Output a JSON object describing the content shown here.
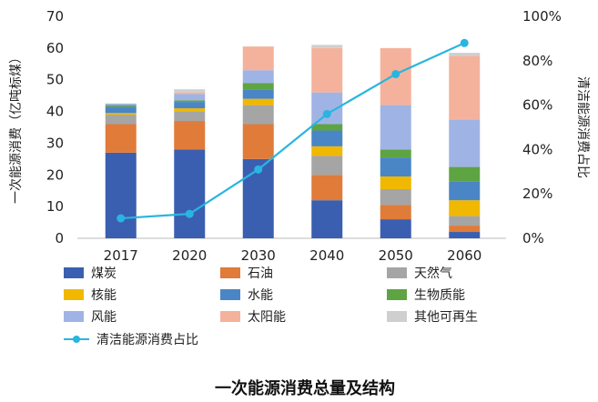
{
  "chart_data": {
    "type": "bar",
    "stacked": true,
    "categories": [
      "2017",
      "2020",
      "2030",
      "2040",
      "2050",
      "2060"
    ],
    "ylabel": "一次能源消费（亿吨标煤）",
    "ylabel_right": "清洁能源消费占比",
    "ylim": [
      0,
      70
    ],
    "yticks": [
      0,
      10,
      20,
      30,
      40,
      50,
      60,
      70
    ],
    "ylim_right": [
      0,
      100
    ],
    "yticks_right": [
      "0%",
      "20%",
      "40%",
      "60%",
      "80%",
      "100%"
    ],
    "series": [
      {
        "name": "煤炭",
        "color": "#3a5fb0",
        "values": [
          27,
          28,
          25,
          12,
          6,
          2
        ]
      },
      {
        "name": "石油",
        "color": "#e07b39",
        "values": [
          9,
          9,
          11,
          8,
          4.5,
          2
        ]
      },
      {
        "name": "天然气",
        "color": "#a5a5a5",
        "values": [
          3,
          3,
          6,
          6,
          5,
          3
        ]
      },
      {
        "name": "核能",
        "color": "#f0b800",
        "values": [
          0.5,
          1,
          2,
          3,
          4,
          5
        ]
      },
      {
        "name": "水能",
        "color": "#4a86c5",
        "values": [
          2,
          2,
          3,
          5,
          6,
          6
        ]
      },
      {
        "name": "生物质能",
        "color": "#5ea442",
        "values": [
          0.5,
          0.5,
          2,
          2,
          2.5,
          4.5
        ]
      },
      {
        "name": "风能",
        "color": "#9fb4e4",
        "values": [
          0.5,
          2,
          4,
          10,
          14,
          15
        ]
      },
      {
        "name": "太阳能",
        "color": "#f4b29c",
        "values": [
          0,
          0.5,
          7.5,
          14,
          18,
          20
        ]
      },
      {
        "name": "其他可再生",
        "color": "#cfcfcf",
        "values": [
          0,
          1,
          0,
          1,
          0,
          1
        ]
      }
    ],
    "line": {
      "name": "清洁能源消费占比",
      "color": "#29b5e0",
      "values": [
        9,
        11,
        31,
        56,
        74,
        88
      ]
    },
    "legend_position": "bottom",
    "caption": "一次能源消费总量及结构"
  }
}
